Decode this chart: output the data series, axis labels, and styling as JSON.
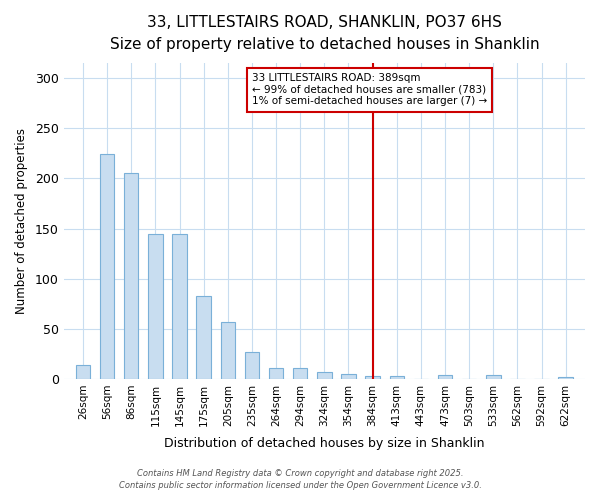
{
  "title": "33, LITTLESTAIRS ROAD, SHANKLIN, PO37 6HS",
  "subtitle": "Size of property relative to detached houses in Shanklin",
  "xlabel": "Distribution of detached houses by size in Shanklin",
  "ylabel": "Number of detached properties",
  "bar_color": "#c8ddf0",
  "bar_edge_color": "#7ab0d8",
  "background_color": "#ffffff",
  "grid_color": "#c8ddf0",
  "categories": [
    "26sqm",
    "56sqm",
    "86sqm",
    "115sqm",
    "145sqm",
    "175sqm",
    "205sqm",
    "235sqm",
    "264sqm",
    "294sqm",
    "324sqm",
    "354sqm",
    "384sqm",
    "413sqm",
    "443sqm",
    "473sqm",
    "503sqm",
    "533sqm",
    "562sqm",
    "592sqm",
    "622sqm"
  ],
  "values": [
    14,
    224,
    205,
    145,
    145,
    83,
    57,
    27,
    11,
    11,
    7,
    5,
    3,
    3,
    0,
    4,
    0,
    4,
    0,
    0,
    2
  ],
  "ylim": [
    0,
    315
  ],
  "yticks": [
    0,
    50,
    100,
    150,
    200,
    250,
    300
  ],
  "vline_index": 12,
  "annotation_text_line1": "33 LITTLESTAIRS ROAD: 389sqm",
  "annotation_text_line2": "← 99% of detached houses are smaller (783)",
  "annotation_text_line3": "1% of semi-detached houses are larger (7) →",
  "annotation_box_color": "#ffffff",
  "annotation_box_edge_color": "#cc0000",
  "vline_color": "#cc0000",
  "footer_line1": "Contains HM Land Registry data © Crown copyright and database right 2025.",
  "footer_line2": "Contains public sector information licensed under the Open Government Licence v3.0."
}
